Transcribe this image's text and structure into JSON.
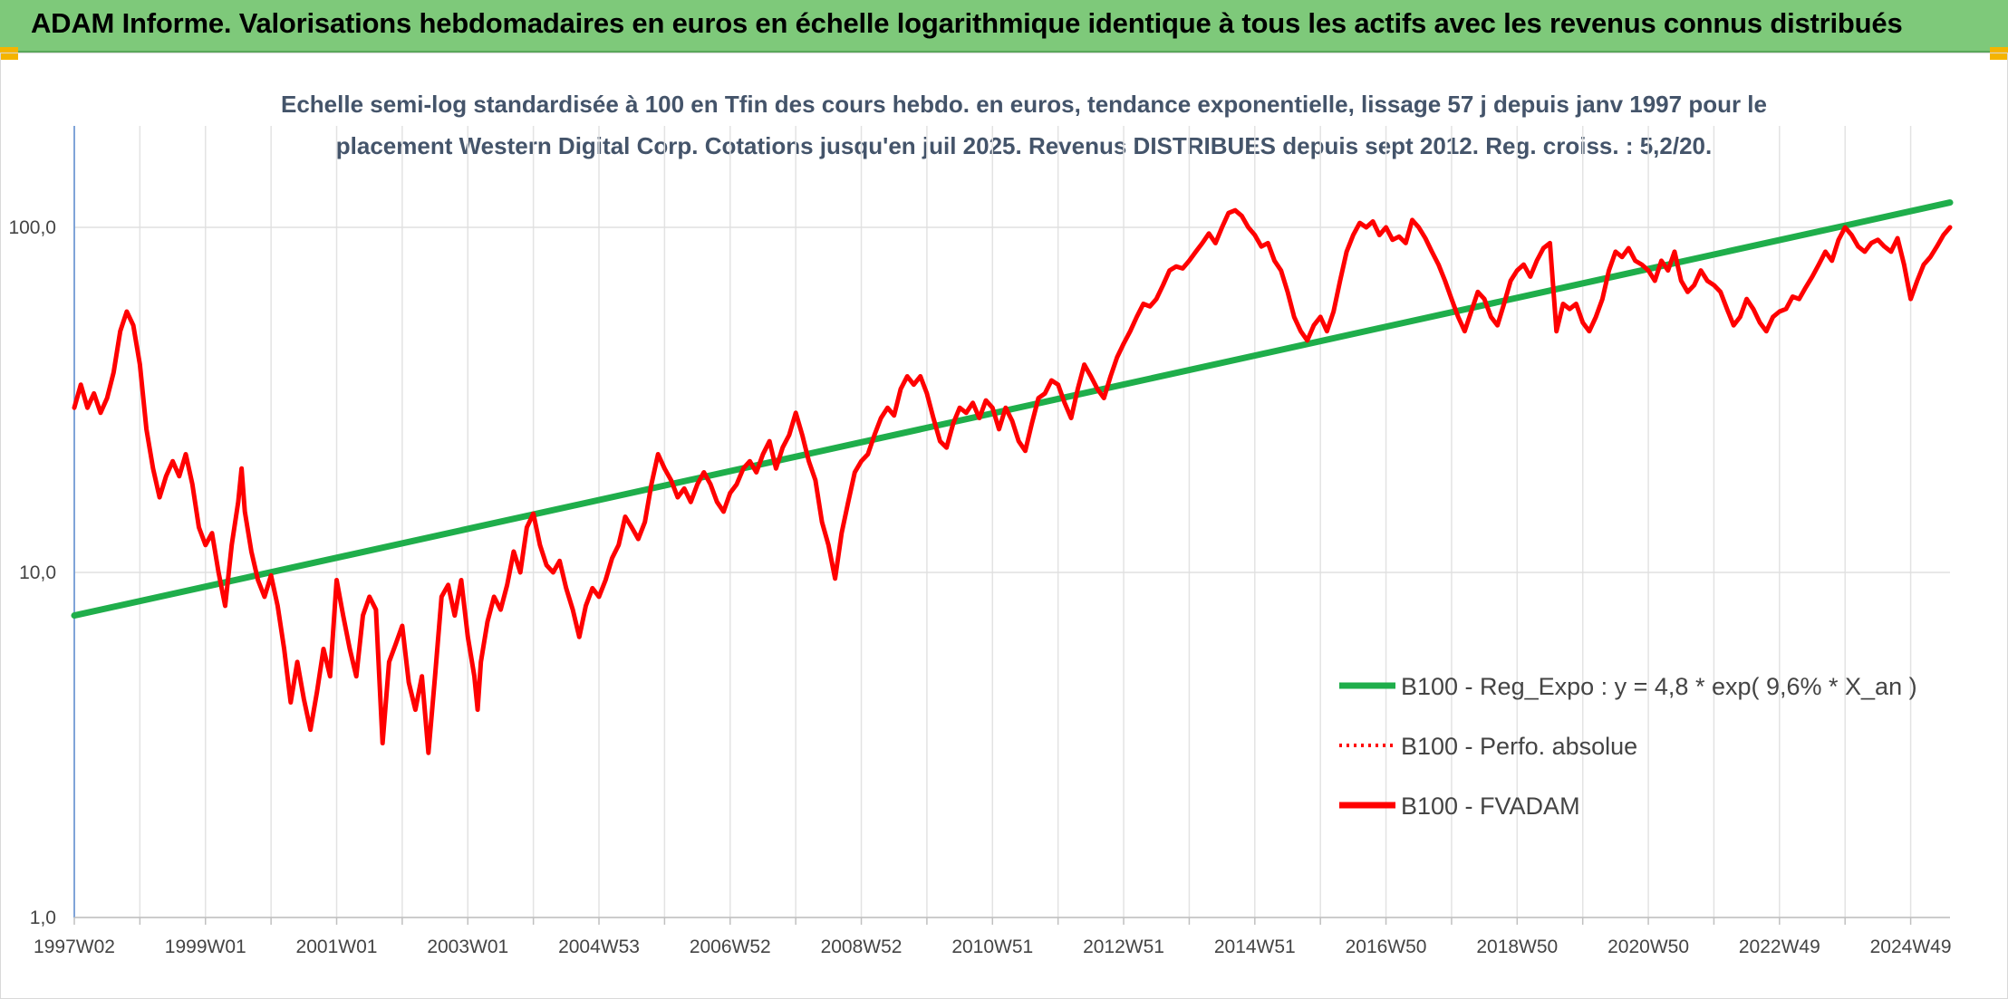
{
  "banner": {
    "title": "ADAM Informe. Valorisations hebdomadaires en euros en échelle logarithmique identique à tous les actifs avec les revenus connus distribués"
  },
  "colors": {
    "banner_bg": "#7ec97a",
    "corner": "#f4b400",
    "trend": "#1fae4b",
    "series": "#ff0000",
    "title_text": "#44546a"
  },
  "chart_data": {
    "type": "line",
    "title": "Echelle semi-log standardisée à 100 en Tfin des cours hebdo. en euros, tendance exponentielle, lissage 57 j depuis janv 1997 pour le placement Western Digital Corp. Cotations jusqu'en juil 2025. Revenus DISTRIBUES depuis sept 2012. Reg. croiss. : 5,2/20.",
    "title_lines": [
      "Echelle semi-log standardisée à 100 en Tfin des cours hebdo. en euros, tendance exponentielle, lissage 57 j depuis janv 1997 pour le",
      "placement Western Digital Corp. Cotations jusqu'en juil 2025. Revenus DISTRIBUES depuis sept 2012. Reg. croiss. : 5,2/20."
    ],
    "y_scale": "log",
    "ylim": [
      1,
      200
    ],
    "y_ticks": [
      1,
      10,
      100
    ],
    "y_tick_labels": [
      "1,0",
      "10,0",
      "100,0"
    ],
    "xlim": [
      1997.0,
      2025.6
    ],
    "x_ticks": [
      1997.0,
      1999.0,
      2001.0,
      2003.0,
      2005.0,
      2007.0,
      2009.0,
      2011.0,
      2013.0,
      2015.0,
      2017.0,
      2019.0,
      2021.0,
      2023.0,
      2025.0
    ],
    "x_tick_labels": [
      "1997W02",
      "1999W01",
      "2001W01",
      "2003W01",
      "2004W53",
      "2006W52",
      "2008W52",
      "2010W51",
      "2012W51",
      "2014W51",
      "2016W50",
      "2018W50",
      "2020W50",
      "2022W49",
      "2024W49"
    ],
    "grid": true,
    "legend_position": "bottom-right",
    "series": [
      {
        "name": "B100 - Reg_Expo : y = 4,8 * exp( 9,6% *  X_an )",
        "style": "solid",
        "color": "#1fae4b",
        "points": [
          [
            1997.0,
            7.5
          ],
          [
            2025.6,
            118
          ]
        ]
      },
      {
        "name": "B100 - Perfo. absolue",
        "style": "dotted",
        "color": "#ff0000",
        "points": []
      },
      {
        "name": "B100 - FVADAM",
        "style": "solid",
        "color": "#ff0000",
        "points": [
          [
            1997.0,
            30
          ],
          [
            1997.1,
            35
          ],
          [
            1997.2,
            30
          ],
          [
            1997.3,
            33
          ],
          [
            1997.4,
            29
          ],
          [
            1997.5,
            32
          ],
          [
            1997.6,
            38
          ],
          [
            1997.7,
            50
          ],
          [
            1997.8,
            57
          ],
          [
            1997.9,
            52
          ],
          [
            1998.0,
            40
          ],
          [
            1998.1,
            26
          ],
          [
            1998.2,
            20
          ],
          [
            1998.3,
            16.5
          ],
          [
            1998.4,
            19
          ],
          [
            1998.5,
            21
          ],
          [
            1998.6,
            19
          ],
          [
            1998.7,
            22
          ],
          [
            1998.8,
            18
          ],
          [
            1998.9,
            13.5
          ],
          [
            1999.0,
            12
          ],
          [
            1999.1,
            13
          ],
          [
            1999.2,
            10
          ],
          [
            1999.3,
            8
          ],
          [
            1999.4,
            12
          ],
          [
            1999.5,
            16
          ],
          [
            1999.55,
            20
          ],
          [
            1999.6,
            15
          ],
          [
            1999.7,
            11.5
          ],
          [
            1999.8,
            9.5
          ],
          [
            1999.9,
            8.5
          ],
          [
            2000.0,
            9.8
          ],
          [
            2000.1,
            8
          ],
          [
            2000.2,
            6
          ],
          [
            2000.3,
            4.2
          ],
          [
            2000.4,
            5.5
          ],
          [
            2000.5,
            4.3
          ],
          [
            2000.6,
            3.5
          ],
          [
            2000.7,
            4.5
          ],
          [
            2000.8,
            6
          ],
          [
            2000.9,
            5
          ],
          [
            2001.0,
            9.5
          ],
          [
            2001.1,
            7.5
          ],
          [
            2001.2,
            6
          ],
          [
            2001.3,
            5
          ],
          [
            2001.4,
            7.5
          ],
          [
            2001.5,
            8.5
          ],
          [
            2001.6,
            7.8
          ],
          [
            2001.7,
            3.2
          ],
          [
            2001.8,
            5.5
          ],
          [
            2001.9,
            6.2
          ],
          [
            2002.0,
            7
          ],
          [
            2002.1,
            4.8
          ],
          [
            2002.2,
            4
          ],
          [
            2002.3,
            5
          ],
          [
            2002.4,
            3.0
          ],
          [
            2002.5,
            5
          ],
          [
            2002.6,
            8.5
          ],
          [
            2002.7,
            9.2
          ],
          [
            2002.8,
            7.5
          ],
          [
            2002.9,
            9.5
          ],
          [
            2003.0,
            6.5
          ],
          [
            2003.1,
            5
          ],
          [
            2003.15,
            4
          ],
          [
            2003.2,
            5.5
          ],
          [
            2003.3,
            7.2
          ],
          [
            2003.4,
            8.5
          ],
          [
            2003.5,
            7.8
          ],
          [
            2003.6,
            9.2
          ],
          [
            2003.7,
            11.5
          ],
          [
            2003.8,
            10
          ],
          [
            2003.9,
            13.5
          ],
          [
            2004.0,
            14.8
          ],
          [
            2004.1,
            12
          ],
          [
            2004.2,
            10.5
          ],
          [
            2004.3,
            10
          ],
          [
            2004.4,
            10.8
          ],
          [
            2004.5,
            9
          ],
          [
            2004.6,
            7.8
          ],
          [
            2004.7,
            6.5
          ],
          [
            2004.8,
            8
          ],
          [
            2004.9,
            9
          ],
          [
            2005.0,
            8.5
          ],
          [
            2005.1,
            9.5
          ],
          [
            2005.2,
            11
          ],
          [
            2005.3,
            12
          ],
          [
            2005.4,
            14.5
          ],
          [
            2005.5,
            13.5
          ],
          [
            2005.6,
            12.5
          ],
          [
            2005.7,
            14
          ],
          [
            2005.8,
            18
          ],
          [
            2005.9,
            22
          ],
          [
            2006.0,
            20
          ],
          [
            2006.1,
            18.5
          ],
          [
            2006.2,
            16.5
          ],
          [
            2006.3,
            17.5
          ],
          [
            2006.4,
            16
          ],
          [
            2006.5,
            18
          ],
          [
            2006.6,
            19.5
          ],
          [
            2006.7,
            18
          ],
          [
            2006.8,
            16
          ],
          [
            2006.9,
            15
          ],
          [
            2007.0,
            17
          ],
          [
            2007.1,
            18
          ],
          [
            2007.2,
            20
          ],
          [
            2007.3,
            21
          ],
          [
            2007.4,
            19.5
          ],
          [
            2007.5,
            22
          ],
          [
            2007.6,
            24
          ],
          [
            2007.7,
            20
          ],
          [
            2007.8,
            23
          ],
          [
            2007.9,
            25
          ],
          [
            2008.0,
            29
          ],
          [
            2008.1,
            25
          ],
          [
            2008.2,
            21
          ],
          [
            2008.3,
            18.5
          ],
          [
            2008.4,
            14
          ],
          [
            2008.5,
            12
          ],
          [
            2008.6,
            9.6
          ],
          [
            2008.7,
            13
          ],
          [
            2008.8,
            16
          ],
          [
            2008.9,
            19.5
          ],
          [
            2009.0,
            21
          ],
          [
            2009.1,
            22
          ],
          [
            2009.2,
            25
          ],
          [
            2009.3,
            28
          ],
          [
            2009.4,
            30
          ],
          [
            2009.5,
            28.5
          ],
          [
            2009.6,
            34
          ],
          [
            2009.7,
            37
          ],
          [
            2009.8,
            35
          ],
          [
            2009.9,
            37
          ],
          [
            2010.0,
            33
          ],
          [
            2010.1,
            28
          ],
          [
            2010.2,
            24
          ],
          [
            2010.3,
            23
          ],
          [
            2010.4,
            27
          ],
          [
            2010.5,
            30
          ],
          [
            2010.6,
            29
          ],
          [
            2010.7,
            31
          ],
          [
            2010.8,
            28
          ],
          [
            2010.9,
            31.5
          ],
          [
            2011.0,
            30
          ],
          [
            2011.1,
            26
          ],
          [
            2011.2,
            30
          ],
          [
            2011.3,
            27.5
          ],
          [
            2011.4,
            24
          ],
          [
            2011.5,
            22.5
          ],
          [
            2011.6,
            27
          ],
          [
            2011.7,
            32
          ],
          [
            2011.8,
            33
          ],
          [
            2011.9,
            36
          ],
          [
            2012.0,
            35
          ],
          [
            2012.1,
            31
          ],
          [
            2012.2,
            28
          ],
          [
            2012.3,
            34
          ],
          [
            2012.4,
            40
          ],
          [
            2012.5,
            37
          ],
          [
            2012.6,
            34
          ],
          [
            2012.7,
            32
          ],
          [
            2012.8,
            37
          ],
          [
            2012.9,
            42
          ],
          [
            2013.0,
            46
          ],
          [
            2013.1,
            50
          ],
          [
            2013.2,
            55
          ],
          [
            2013.3,
            60
          ],
          [
            2013.4,
            59
          ],
          [
            2013.5,
            62
          ],
          [
            2013.6,
            68
          ],
          [
            2013.7,
            75
          ],
          [
            2013.8,
            77
          ],
          [
            2013.9,
            76
          ],
          [
            2014.0,
            80
          ],
          [
            2014.1,
            85
          ],
          [
            2014.2,
            90
          ],
          [
            2014.3,
            96
          ],
          [
            2014.4,
            90
          ],
          [
            2014.5,
            100
          ],
          [
            2014.6,
            110
          ],
          [
            2014.7,
            112
          ],
          [
            2014.8,
            108
          ],
          [
            2014.9,
            100
          ],
          [
            2015.0,
            95
          ],
          [
            2015.1,
            88
          ],
          [
            2015.2,
            90
          ],
          [
            2015.3,
            80
          ],
          [
            2015.4,
            75
          ],
          [
            2015.5,
            65
          ],
          [
            2015.6,
            55
          ],
          [
            2015.7,
            50
          ],
          [
            2015.8,
            47
          ],
          [
            2015.9,
            52
          ],
          [
            2016.0,
            55
          ],
          [
            2016.1,
            50
          ],
          [
            2016.2,
            57
          ],
          [
            2016.3,
            70
          ],
          [
            2016.4,
            85
          ],
          [
            2016.5,
            95
          ],
          [
            2016.6,
            103
          ],
          [
            2016.7,
            100
          ],
          [
            2016.8,
            104
          ],
          [
            2016.9,
            95
          ],
          [
            2017.0,
            100
          ],
          [
            2017.1,
            92
          ],
          [
            2017.2,
            94
          ],
          [
            2017.3,
            90
          ],
          [
            2017.4,
            105
          ],
          [
            2017.5,
            100
          ],
          [
            2017.6,
            93
          ],
          [
            2017.7,
            85
          ],
          [
            2017.8,
            78
          ],
          [
            2017.9,
            70
          ],
          [
            2018.0,
            62
          ],
          [
            2018.1,
            55
          ],
          [
            2018.2,
            50
          ],
          [
            2018.3,
            57
          ],
          [
            2018.4,
            65
          ],
          [
            2018.5,
            62
          ],
          [
            2018.6,
            55
          ],
          [
            2018.7,
            52
          ],
          [
            2018.8,
            60
          ],
          [
            2018.9,
            70
          ],
          [
            2019.0,
            75
          ],
          [
            2019.1,
            78
          ],
          [
            2019.2,
            72
          ],
          [
            2019.3,
            80
          ],
          [
            2019.4,
            87
          ],
          [
            2019.5,
            90
          ],
          [
            2019.6,
            50
          ],
          [
            2019.7,
            60
          ],
          [
            2019.8,
            58
          ],
          [
            2019.9,
            60
          ],
          [
            2020.0,
            53
          ],
          [
            2020.1,
            50
          ],
          [
            2020.2,
            55
          ],
          [
            2020.3,
            62
          ],
          [
            2020.4,
            75
          ],
          [
            2020.5,
            85
          ],
          [
            2020.6,
            82
          ],
          [
            2020.7,
            87
          ],
          [
            2020.8,
            80
          ],
          [
            2020.9,
            78
          ],
          [
            2021.0,
            75
          ],
          [
            2021.1,
            70
          ],
          [
            2021.2,
            80
          ],
          [
            2021.3,
            75
          ],
          [
            2021.4,
            85
          ],
          [
            2021.5,
            70
          ],
          [
            2021.6,
            65
          ],
          [
            2021.7,
            68
          ],
          [
            2021.8,
            75
          ],
          [
            2021.9,
            70
          ],
          [
            2022.0,
            68
          ],
          [
            2022.1,
            65
          ],
          [
            2022.2,
            58
          ],
          [
            2022.3,
            52
          ],
          [
            2022.4,
            55
          ],
          [
            2022.5,
            62
          ],
          [
            2022.6,
            58
          ],
          [
            2022.7,
            53
          ],
          [
            2022.8,
            50
          ],
          [
            2022.9,
            55
          ],
          [
            2023.0,
            57
          ],
          [
            2023.1,
            58
          ],
          [
            2023.2,
            63
          ],
          [
            2023.3,
            62
          ],
          [
            2023.4,
            67
          ],
          [
            2023.5,
            72
          ],
          [
            2023.6,
            78
          ],
          [
            2023.7,
            85
          ],
          [
            2023.8,
            80
          ],
          [
            2023.9,
            92
          ],
          [
            2024.0,
            100
          ],
          [
            2024.1,
            95
          ],
          [
            2024.2,
            88
          ],
          [
            2024.3,
            85
          ],
          [
            2024.4,
            90
          ],
          [
            2024.5,
            92
          ],
          [
            2024.6,
            88
          ],
          [
            2024.7,
            85
          ],
          [
            2024.8,
            93
          ],
          [
            2024.9,
            78
          ],
          [
            2025.0,
            62
          ],
          [
            2025.1,
            70
          ],
          [
            2025.2,
            78
          ],
          [
            2025.3,
            82
          ],
          [
            2025.4,
            88
          ],
          [
            2025.5,
            95
          ],
          [
            2025.6,
            100
          ]
        ]
      }
    ]
  }
}
